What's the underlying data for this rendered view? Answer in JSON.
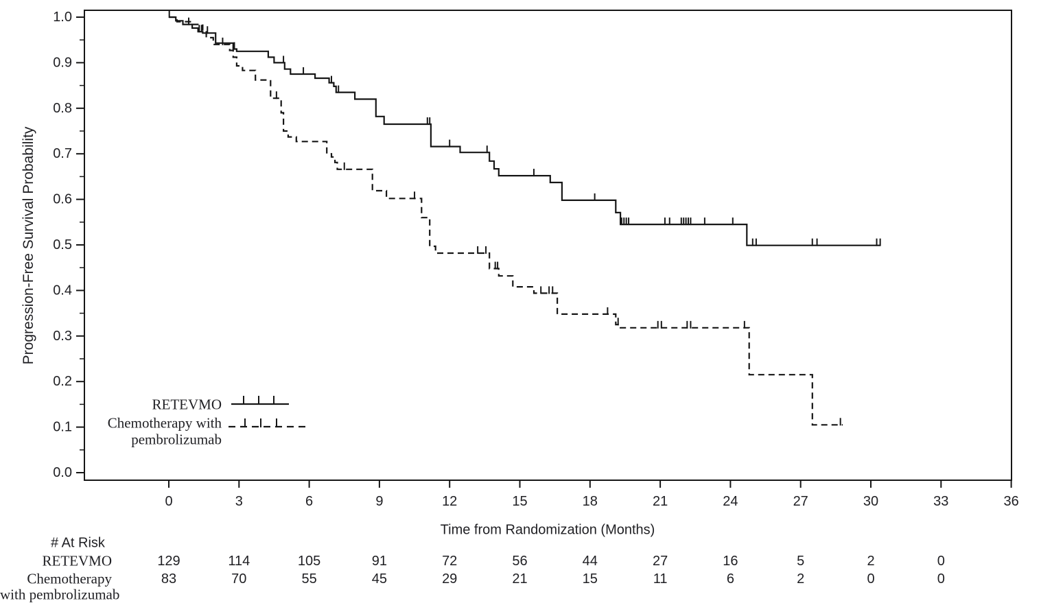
{
  "figure": {
    "background": "#ffffff",
    "line_color": "#161616",
    "text_color": "#1f1f23"
  },
  "chart_data": {
    "type": "line",
    "subtype": "kaplan_meier_step",
    "title": "",
    "xlabel": "Time from Randomization (Months)",
    "ylabel": "Progression-Free Survival Probability",
    "xlim": [
      0,
      36
    ],
    "ylim": [
      0.0,
      1.0
    ],
    "grid": false,
    "x_ticks": [
      0,
      3,
      6,
      9,
      12,
      15,
      18,
      21,
      24,
      27,
      30,
      33,
      36
    ],
    "x_tick_labels": [
      "0",
      "3",
      "6",
      "9",
      "12",
      "15",
      "18",
      "21",
      "24",
      "27",
      "30",
      "33",
      "36"
    ],
    "y_ticks": [
      0.0,
      0.1,
      0.2,
      0.3,
      0.4,
      0.5,
      0.6,
      0.7,
      0.8,
      0.9,
      1.0
    ],
    "y_tick_labels": [
      "0.0",
      "0.1",
      "0.2",
      "0.3",
      "0.4",
      "0.5",
      "0.6",
      "0.7",
      "0.8",
      "0.9",
      "1.0"
    ],
    "y_minor_tick_step": 0.05,
    "legend": {
      "position": "inside-lower-left",
      "items": [
        {
          "label": "RETEVMO",
          "lines": [
            "RETEVMO"
          ],
          "line_style": "solid"
        },
        {
          "label": "Chemotherapy with pembrolizumab",
          "lines": [
            "Chemotherapy with",
            "pembrolizumab"
          ],
          "line_style": "dashed"
        }
      ]
    },
    "series": [
      {
        "name": "RETEVMO",
        "line_style": "solid",
        "steps": [
          [
            0,
            1.0
          ],
          [
            0.3,
            0.992
          ],
          [
            0.6,
            0.984
          ],
          [
            1.0,
            0.976
          ],
          [
            1.25,
            0.968
          ],
          [
            1.45,
            0.965
          ],
          [
            2.0,
            0.943
          ],
          [
            2.75,
            0.93
          ],
          [
            2.9,
            0.925
          ],
          [
            4.25,
            0.912
          ],
          [
            4.5,
            0.9
          ],
          [
            4.95,
            0.886
          ],
          [
            5.2,
            0.875
          ],
          [
            6.25,
            0.866
          ],
          [
            6.85,
            0.856
          ],
          [
            7.05,
            0.848
          ],
          [
            7.15,
            0.835
          ],
          [
            7.95,
            0.82
          ],
          [
            8.85,
            0.782
          ],
          [
            9.2,
            0.765
          ],
          [
            11.2,
            0.716
          ],
          [
            12.45,
            0.703
          ],
          [
            13.7,
            0.684
          ],
          [
            13.9,
            0.667
          ],
          [
            14.1,
            0.652
          ],
          [
            16.3,
            0.637
          ],
          [
            16.8,
            0.598
          ],
          [
            19.1,
            0.571
          ],
          [
            19.3,
            0.545
          ],
          [
            24.7,
            0.499
          ],
          [
            30.4,
            0.499
          ]
        ],
        "censor_marks": [
          [
            0.02,
            1.0
          ],
          [
            0.85,
            0.984
          ],
          [
            1.3,
            0.968
          ],
          [
            1.4,
            0.968
          ],
          [
            1.65,
            0.965
          ],
          [
            2.8,
            0.93
          ],
          [
            4.9,
            0.9
          ],
          [
            5.75,
            0.875
          ],
          [
            6.95,
            0.856
          ],
          [
            7.25,
            0.835
          ],
          [
            11.05,
            0.765
          ],
          [
            11.15,
            0.765
          ],
          [
            12.0,
            0.716
          ],
          [
            13.6,
            0.703
          ],
          [
            15.6,
            0.652
          ],
          [
            18.2,
            0.598
          ],
          [
            19.35,
            0.545
          ],
          [
            19.45,
            0.545
          ],
          [
            19.55,
            0.545
          ],
          [
            19.65,
            0.545
          ],
          [
            21.2,
            0.545
          ],
          [
            21.4,
            0.545
          ],
          [
            21.9,
            0.545
          ],
          [
            22.0,
            0.545
          ],
          [
            22.1,
            0.545
          ],
          [
            22.2,
            0.545
          ],
          [
            22.3,
            0.545
          ],
          [
            22.9,
            0.545
          ],
          [
            24.1,
            0.545
          ],
          [
            24.95,
            0.499
          ],
          [
            25.1,
            0.499
          ],
          [
            27.5,
            0.499
          ],
          [
            27.7,
            0.499
          ],
          [
            30.25,
            0.499
          ],
          [
            30.4,
            0.499
          ]
        ]
      },
      {
        "name": "Chemotherapy with pembrolizumab",
        "line_style": "dashed",
        "steps": [
          [
            0,
            1.0
          ],
          [
            0.35,
            0.99
          ],
          [
            0.95,
            0.984
          ],
          [
            1.45,
            0.972
          ],
          [
            1.6,
            0.955
          ],
          [
            1.9,
            0.94
          ],
          [
            2.6,
            0.927
          ],
          [
            2.75,
            0.912
          ],
          [
            2.9,
            0.893
          ],
          [
            3.15,
            0.883
          ],
          [
            3.7,
            0.862
          ],
          [
            4.35,
            0.822
          ],
          [
            4.8,
            0.79
          ],
          [
            4.9,
            0.75
          ],
          [
            5.1,
            0.737
          ],
          [
            5.45,
            0.727
          ],
          [
            6.75,
            0.7
          ],
          [
            6.95,
            0.693
          ],
          [
            7.1,
            0.681
          ],
          [
            7.2,
            0.666
          ],
          [
            8.7,
            0.619
          ],
          [
            9.3,
            0.602
          ],
          [
            10.8,
            0.56
          ],
          [
            11.15,
            0.497
          ],
          [
            11.4,
            0.482
          ],
          [
            13.7,
            0.448
          ],
          [
            14.1,
            0.432
          ],
          [
            14.7,
            0.408
          ],
          [
            15.6,
            0.394
          ],
          [
            16.6,
            0.348
          ],
          [
            19.1,
            0.325
          ],
          [
            19.3,
            0.318
          ],
          [
            24.8,
            0.215
          ],
          [
            27.5,
            0.105
          ],
          [
            28.8,
            0.105
          ]
        ],
        "censor_marks": [
          [
            2.3,
            0.94
          ],
          [
            4.6,
            0.822
          ],
          [
            7.5,
            0.666
          ],
          [
            10.5,
            0.602
          ],
          [
            13.2,
            0.482
          ],
          [
            13.55,
            0.482
          ],
          [
            13.95,
            0.448
          ],
          [
            14.05,
            0.448
          ],
          [
            15.9,
            0.394
          ],
          [
            16.25,
            0.394
          ],
          [
            16.4,
            0.394
          ],
          [
            18.75,
            0.348
          ],
          [
            19.2,
            0.325
          ],
          [
            20.9,
            0.318
          ],
          [
            21.05,
            0.318
          ],
          [
            22.15,
            0.318
          ],
          [
            22.3,
            0.318
          ],
          [
            24.6,
            0.318
          ],
          [
            28.7,
            0.105
          ]
        ]
      }
    ],
    "at_risk_table": {
      "header": "# At Risk",
      "time_points": [
        0,
        3,
        6,
        9,
        12,
        15,
        18,
        21,
        24,
        27,
        30,
        33
      ],
      "rows": [
        {
          "label": "RETEVMO",
          "label_lines": [
            "RETEVMO"
          ],
          "counts": [
            129,
            114,
            105,
            91,
            72,
            56,
            44,
            27,
            16,
            5,
            2,
            0
          ]
        },
        {
          "label": "Chemotherapy with pembrolizumab",
          "label_lines": [
            "Chemotherapy",
            "with pembrolizumab"
          ],
          "counts": [
            83,
            70,
            55,
            45,
            29,
            21,
            15,
            11,
            6,
            2,
            0,
            0
          ]
        }
      ]
    }
  }
}
